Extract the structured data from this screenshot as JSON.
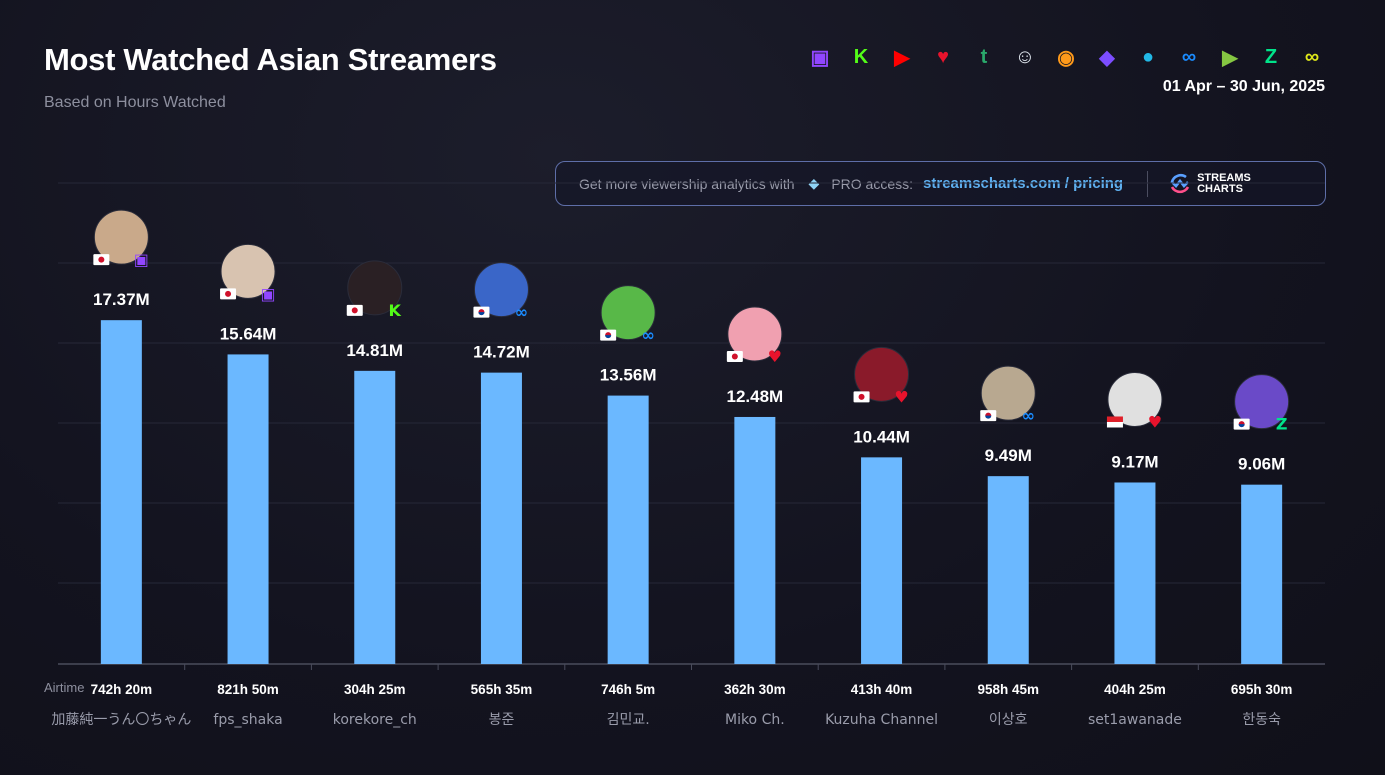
{
  "header": {
    "title": "Most Watched Asian Streamers",
    "subtitle": "Based on Hours Watched",
    "date_range": "01 Apr – 30 Jun, 2025"
  },
  "platforms": [
    {
      "name": "twitch-icon",
      "color": "#9146ff",
      "glyph": "▣"
    },
    {
      "name": "kick-icon",
      "color": "#53fc18",
      "glyph": "K"
    },
    {
      "name": "youtube-icon",
      "color": "#ff0000",
      "glyph": "▶"
    },
    {
      "name": "heart-platform-icon",
      "color": "#e8132c",
      "glyph": "♥"
    },
    {
      "name": "trovo-icon",
      "color": "#2aa86b",
      "glyph": "t"
    },
    {
      "name": "bilibili-mascot-icon",
      "color": "#e0e6ee",
      "glyph": "☺"
    },
    {
      "name": "huya-icon",
      "color": "#ff9a1a",
      "glyph": "◉"
    },
    {
      "name": "bird-platform-icon",
      "color": "#7c4dff",
      "glyph": "◆"
    },
    {
      "name": "camera-platform-icon",
      "color": "#22b8e6",
      "glyph": "●"
    },
    {
      "name": "soop-icon",
      "color": "#1b8cff",
      "glyph": "∞"
    },
    {
      "name": "rumble-icon",
      "color": "#85c742",
      "glyph": "▶"
    },
    {
      "name": "chzzk-icon",
      "color": "#00e38a",
      "glyph": "Z"
    },
    {
      "name": "yellow-infinity-icon",
      "color": "#dfe81a",
      "glyph": "∞"
    }
  ],
  "promo": {
    "text": "Get more viewership analytics with",
    "pro": "PRO access:",
    "link": "streamscharts.com / pricing",
    "logo_line1": "STREAMS",
    "logo_line2": "CHARTS"
  },
  "colors": {
    "bar": "#6bb8ff",
    "grid": "#262838"
  },
  "chart_data": {
    "type": "bar",
    "title": "Most Watched Asian Streamers",
    "subtitle": "Based on Hours Watched",
    "airtime_label": "Airtime",
    "ylim": [
      0,
      24.3
    ],
    "grid": true,
    "categories": [
      "加藤純一うん〇ちゃん",
      "fps_shaka",
      "korekore_ch",
      "봉준",
      "김민교.",
      "Miko Ch.",
      "Kuzuha Channel",
      "이상호",
      "set1awanade",
      "한동숙"
    ],
    "values": [
      17.37,
      15.64,
      14.81,
      14.72,
      13.56,
      12.48,
      10.44,
      9.49,
      9.17,
      9.06
    ],
    "value_labels": [
      "17.37M",
      "15.64M",
      "14.81M",
      "14.72M",
      "13.56M",
      "12.48M",
      "10.44M",
      "9.49M",
      "9.17M",
      "9.06M"
    ],
    "airtime": [
      "742h 20m",
      "821h 50m",
      "304h 25m",
      "565h 35m",
      "746h 5m",
      "362h 30m",
      "413h 40m",
      "958h 45m",
      "404h 25m",
      "695h 30m"
    ],
    "countries": [
      "JP",
      "JP",
      "JP",
      "KR",
      "KR",
      "JP",
      "JP",
      "KR",
      "ID",
      "KR"
    ],
    "platform": [
      "twitch",
      "twitch",
      "kick",
      "soop",
      "soop",
      "heart",
      "heart",
      "soop",
      "heart",
      "chzzk"
    ]
  }
}
